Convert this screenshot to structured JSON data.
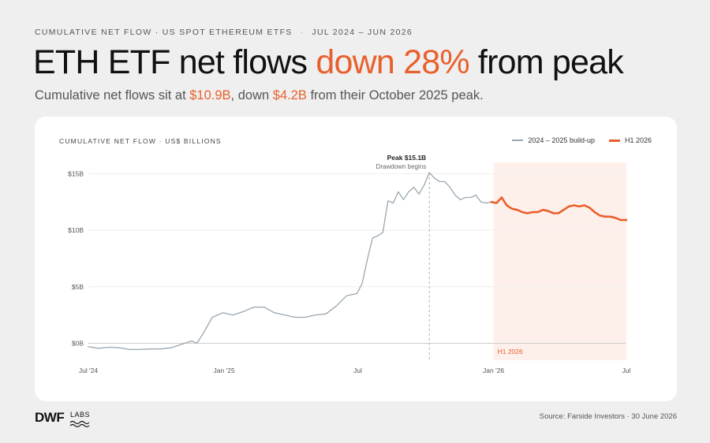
{
  "header": {
    "eyebrow_left": "CUMULATIVE NET FLOW · US SPOT ETHEREUM ETFS",
    "eyebrow_sep": "·",
    "eyebrow_right": "JUL 2024 – JUN 2026",
    "headline_pre": "ETH ETF net flows ",
    "headline_accent": "down 28%",
    "headline_post": " from peak",
    "sub_pre": "Cumulative net flows sit at ",
    "sub_value1": "$10.9B",
    "sub_mid": ", down ",
    "sub_value2": "$4.2B",
    "sub_post": " from their October 2025 peak."
  },
  "footer": {
    "logo_text": "DWF",
    "logo_sub": "LABS",
    "source": "Source: Farside Investors · 30 June 2026"
  },
  "colors": {
    "series1": "#9aa7b0",
    "series2": "#e8602c",
    "highlight_band": "#fdf0eb",
    "accent": "#e8602c"
  },
  "chart_data": {
    "type": "line",
    "title": "CUMULATIVE NET FLOW · US$ BILLIONS",
    "xlabel": "",
    "ylabel": "",
    "x_ticks": [
      "Jul '24",
      "Jan '25",
      "Jul",
      "Jan '26",
      "Jul"
    ],
    "y_ticks": [
      "$0B",
      "$5B",
      "$10B",
      "$15B"
    ],
    "ylim": [
      -1.5,
      16
    ],
    "grid": true,
    "legend_position": "top-right",
    "series": [
      {
        "name": "2024 – 2025 build-up",
        "x": [
          "2024-07-01",
          "2024-07-15",
          "2024-07-29",
          "2024-08-12",
          "2024-08-26",
          "2024-09-09",
          "2024-09-23",
          "2024-10-07",
          "2024-10-21",
          "2024-11-04",
          "2024-11-18",
          "2024-11-25",
          "2024-12-02",
          "2024-12-16",
          "2024-12-30",
          "2025-01-13",
          "2025-01-27",
          "2025-02-10",
          "2025-02-24",
          "2025-03-10",
          "2025-03-24",
          "2025-04-07",
          "2025-04-21",
          "2025-05-05",
          "2025-05-19",
          "2025-06-02",
          "2025-06-16",
          "2025-06-30",
          "2025-07-07",
          "2025-07-14",
          "2025-07-21",
          "2025-07-28",
          "2025-08-04",
          "2025-08-11",
          "2025-08-18",
          "2025-08-25",
          "2025-09-01",
          "2025-09-08",
          "2025-09-15",
          "2025-09-22",
          "2025-09-29",
          "2025-10-06",
          "2025-10-13",
          "2025-10-20",
          "2025-10-27",
          "2025-11-03",
          "2025-11-10",
          "2025-11-17",
          "2025-11-24",
          "2025-12-01",
          "2025-12-08",
          "2025-12-15",
          "2025-12-22",
          "2025-12-29"
        ],
        "values": [
          -0.3,
          -0.45,
          -0.35,
          -0.4,
          -0.55,
          -0.55,
          -0.5,
          -0.5,
          -0.4,
          -0.1,
          0.2,
          0.0,
          0.7,
          2.3,
          2.7,
          2.5,
          2.8,
          3.2,
          3.2,
          2.7,
          2.5,
          2.3,
          2.3,
          2.5,
          2.6,
          3.3,
          4.2,
          4.4,
          5.3,
          7.4,
          9.3,
          9.5,
          9.8,
          12.6,
          12.4,
          13.4,
          12.7,
          13.4,
          13.8,
          13.2,
          14.0,
          15.1,
          14.6,
          14.3,
          14.3,
          13.8,
          13.1,
          12.7,
          12.9,
          12.9,
          13.1,
          12.5,
          12.4,
          12.5
        ]
      },
      {
        "name": "H1 2026",
        "x": [
          "2025-12-29",
          "2026-01-05",
          "2026-01-12",
          "2026-01-19",
          "2026-01-26",
          "2026-02-02",
          "2026-02-09",
          "2026-02-16",
          "2026-02-23",
          "2026-03-02",
          "2026-03-09",
          "2026-03-16",
          "2026-03-23",
          "2026-03-30",
          "2026-04-06",
          "2026-04-13",
          "2026-04-20",
          "2026-04-27",
          "2026-05-04",
          "2026-05-11",
          "2026-05-18",
          "2026-05-25",
          "2026-06-01",
          "2026-06-08",
          "2026-06-15",
          "2026-06-22",
          "2026-06-30"
        ],
        "values": [
          12.5,
          12.4,
          12.9,
          12.2,
          11.9,
          11.8,
          11.6,
          11.5,
          11.6,
          11.6,
          11.8,
          11.7,
          11.5,
          11.5,
          11.8,
          12.1,
          12.2,
          12.1,
          12.2,
          12.0,
          11.6,
          11.3,
          11.2,
          11.2,
          11.1,
          10.9,
          10.9
        ]
      }
    ],
    "annotations": [
      {
        "text": "Peak $15.1B",
        "subtext": "Drawdown begins",
        "x": "2025-10-06",
        "y": 15.1
      },
      {
        "text": "H1 2026",
        "x_start": "2026-01-01",
        "x_end": "2026-06-30"
      }
    ]
  }
}
